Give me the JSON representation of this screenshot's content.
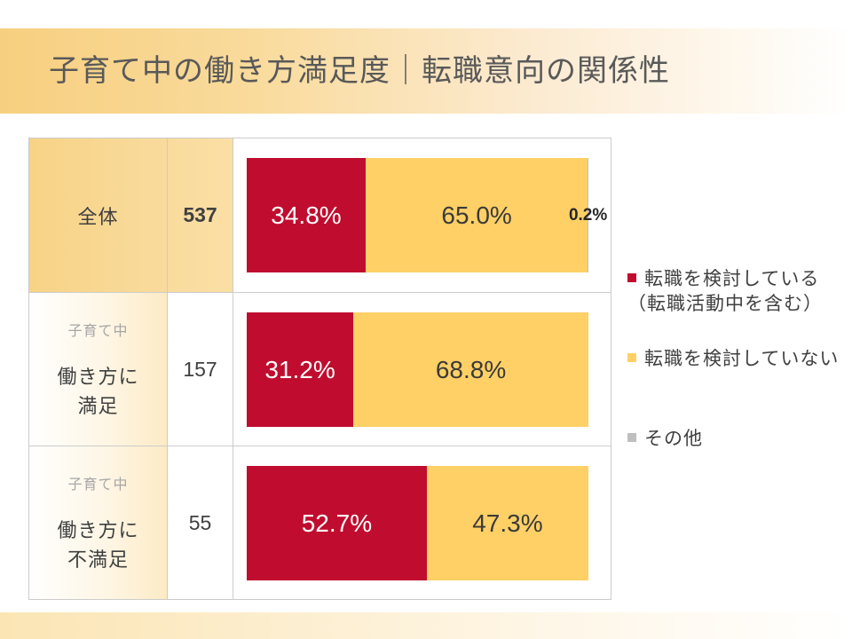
{
  "chart_data": {
    "type": "bar",
    "orientation": "horizontal",
    "stacked": true,
    "title": "子育て中の働き方満足度｜転職意向の関係性",
    "xlim": [
      0,
      100
    ],
    "grid": false,
    "legend": "right",
    "categories": [
      {
        "lines": [
          "全体"
        ],
        "n": 537
      },
      {
        "group": "子育て中",
        "lines": [
          "働き方に",
          "満足"
        ],
        "n": 157
      },
      {
        "group": "子育て中",
        "lines": [
          "働き方に",
          "不満足"
        ],
        "n": 55
      }
    ],
    "series": [
      {
        "name": "転職を検討している",
        "name_note": "（転職活動中を含む）",
        "color": "#c00d2f",
        "label_color": "#ffffff",
        "values": [
          34.8,
          31.2,
          52.7
        ],
        "labels": [
          "34.8%",
          "31.2%",
          "52.7%"
        ]
      },
      {
        "name": "転職を検討していない",
        "color": "#ffd066",
        "label_color": "#3a3a3a",
        "values": [
          65.0,
          68.8,
          47.3
        ],
        "labels": [
          "65.0%",
          "68.8%",
          "47.3%"
        ]
      },
      {
        "name": "その他",
        "color": "#bfbfbf",
        "label_color": "#262626",
        "values": [
          0.2,
          0,
          0
        ],
        "labels": [
          "0.2%",
          "",
          ""
        ]
      }
    ]
  }
}
